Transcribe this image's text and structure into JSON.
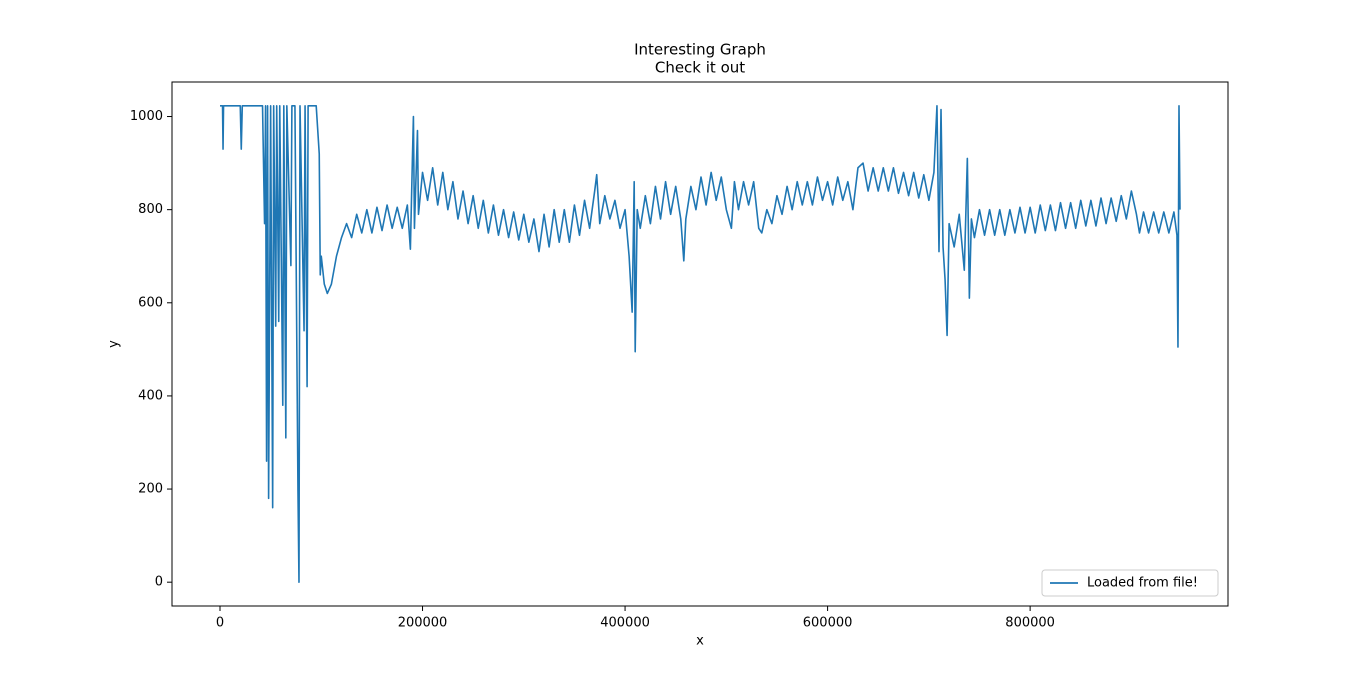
{
  "chart_data": {
    "type": "line",
    "title": "Interesting Graph",
    "subtitle": "Check it out",
    "x_label": "x",
    "y_label": "y",
    "xlim": [
      -47400,
      995400
    ],
    "ylim": [
      -51.15,
      1074.15
    ],
    "xticks": [
      0,
      200000,
      400000,
      600000,
      800000
    ],
    "yticks": [
      0,
      200,
      400,
      600,
      800,
      1000
    ],
    "legend": "lower right",
    "x": [
      0,
      2500,
      3000,
      3500,
      20000,
      21000,
      22000,
      42000,
      44000,
      45000,
      46000,
      47000,
      48000,
      50000,
      52000,
      53000,
      55000,
      56000,
      58000,
      59000,
      62000,
      63000,
      65000,
      66000,
      70000,
      71000,
      74000,
      77000,
      78000,
      79000,
      83000,
      84000,
      86000,
      87000,
      95000,
      98000,
      99000,
      100000,
      103000,
      106000,
      110000,
      115000,
      120000,
      125000,
      130000,
      135000,
      140000,
      145000,
      150000,
      155000,
      160000,
      165000,
      170000,
      175000,
      180000,
      185000,
      188000,
      190000,
      191000,
      192000,
      195000,
      196000,
      200000,
      205000,
      210000,
      215000,
      220000,
      225000,
      230000,
      235000,
      240000,
      245000,
      250000,
      255000,
      260000,
      265000,
      270000,
      275000,
      280000,
      285000,
      290000,
      295000,
      300000,
      305000,
      310000,
      315000,
      320000,
      325000,
      330000,
      335000,
      340000,
      345000,
      350000,
      355000,
      360000,
      365000,
      370000,
      372000,
      375000,
      380000,
      385000,
      390000,
      395000,
      400000,
      404000,
      407000,
      409000,
      410000,
      412000,
      415000,
      420000,
      425000,
      430000,
      435000,
      440000,
      445000,
      450000,
      455000,
      458000,
      460000,
      465000,
      470000,
      475000,
      480000,
      485000,
      490000,
      495000,
      500000,
      505000,
      508000,
      512000,
      517000,
      522000,
      527000,
      532000,
      535000,
      540000,
      545000,
      550000,
      555000,
      560000,
      565000,
      570000,
      575000,
      580000,
      585000,
      590000,
      595000,
      600000,
      605000,
      610000,
      615000,
      620000,
      625000,
      630000,
      635000,
      640000,
      645000,
      650000,
      655000,
      660000,
      665000,
      670000,
      675000,
      680000,
      685000,
      690000,
      695000,
      700000,
      705000,
      708000,
      710000,
      712000,
      714000,
      716000,
      718000,
      720000,
      725000,
      730000,
      735000,
      738000,
      740000,
      742000,
      745000,
      750000,
      755000,
      760000,
      765000,
      770000,
      775000,
      780000,
      785000,
      790000,
      795000,
      800000,
      805000,
      810000,
      815000,
      820000,
      825000,
      830000,
      835000,
      840000,
      845000,
      850000,
      855000,
      860000,
      865000,
      870000,
      875000,
      880000,
      885000,
      890000,
      895000,
      900000,
      905000,
      908000,
      912000,
      917000,
      922000,
      927000,
      932000,
      937000,
      942000,
      945000,
      946000,
      947000,
      948000
    ],
    "series": [
      {
        "name": "Loaded from file!",
        "color": "#1f77b4",
        "values": [
          1023,
          1023,
          930,
          1023,
          1023,
          930,
          1023,
          1023,
          770,
          1023,
          260,
          1023,
          180,
          1023,
          160,
          1023,
          550,
          1023,
          560,
          1023,
          380,
          1023,
          310,
          1023,
          680,
          1023,
          1023,
          195,
          0,
          1023,
          540,
          1023,
          420,
          1023,
          1023,
          920,
          660,
          700,
          640,
          620,
          640,
          700,
          740,
          770,
          740,
          790,
          750,
          800,
          750,
          805,
          755,
          810,
          760,
          805,
          760,
          810,
          715,
          910,
          1000,
          760,
          970,
          790,
          880,
          820,
          890,
          810,
          880,
          800,
          860,
          780,
          840,
          770,
          830,
          760,
          820,
          750,
          810,
          745,
          800,
          740,
          795,
          735,
          790,
          730,
          780,
          710,
          790,
          720,
          800,
          730,
          800,
          730,
          810,
          745,
          820,
          760,
          840,
          875,
          770,
          830,
          780,
          820,
          760,
          800,
          700,
          580,
          860,
          495,
          800,
          760,
          830,
          770,
          850,
          780,
          860,
          790,
          850,
          780,
          690,
          780,
          850,
          800,
          870,
          810,
          880,
          820,
          870,
          800,
          760,
          860,
          800,
          860,
          810,
          860,
          760,
          750,
          800,
          770,
          830,
          790,
          850,
          800,
          860,
          810,
          860,
          810,
          870,
          820,
          860,
          810,
          870,
          820,
          860,
          800,
          890,
          900,
          840,
          890,
          840,
          890,
          840,
          890,
          835,
          880,
          830,
          880,
          825,
          875,
          820,
          880,
          1023,
          710,
          1015,
          720,
          650,
          530,
          770,
          720,
          790,
          670,
          910,
          610,
          780,
          740,
          800,
          745,
          800,
          745,
          800,
          745,
          800,
          750,
          805,
          750,
          805,
          750,
          810,
          755,
          810,
          755,
          815,
          760,
          815,
          760,
          820,
          765,
          820,
          765,
          825,
          770,
          825,
          775,
          830,
          780,
          840,
          790,
          750,
          795,
          750,
          795,
          750,
          795,
          750,
          795,
          745,
          505,
          1023,
          800
        ]
      }
    ]
  }
}
